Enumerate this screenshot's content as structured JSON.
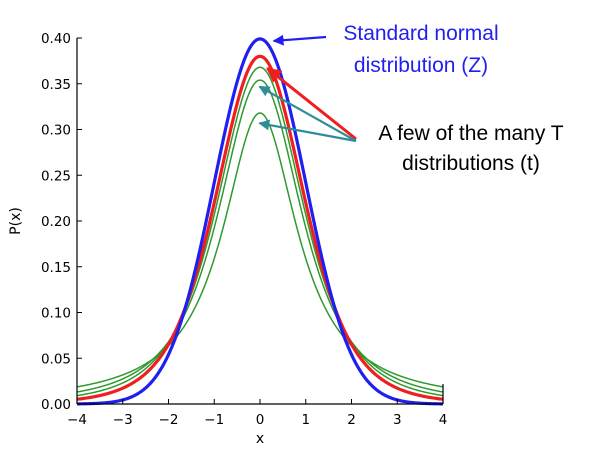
{
  "chart_data": {
    "type": "line",
    "xlabel": "x",
    "ylabel": "P(x)",
    "xlim": [
      -4,
      4
    ],
    "ylim": [
      0,
      0.4
    ],
    "x_ticks": [
      -4,
      -3,
      -2,
      -1,
      0,
      1,
      2,
      3,
      4
    ],
    "x_tick_labels": [
      "−4",
      "−3",
      "−2",
      "−1",
      "0",
      "1",
      "2",
      "3",
      "4"
    ],
    "y_ticks": [
      0,
      0.05,
      0.1,
      0.15,
      0.2,
      0.25,
      0.3,
      0.35,
      0.4
    ],
    "y_tick_labels": [
      "0.00",
      "0.05",
      "0.10",
      "0.15",
      "0.20",
      "0.25",
      "0.30",
      "0.35",
      "0.40"
    ],
    "grid": false,
    "series": [
      {
        "distribution": "normal",
        "peak": 0.399,
        "color": "#1f1fef",
        "line": "thick"
      },
      {
        "distribution": "t",
        "df": 5,
        "peak": 0.38,
        "color": "#ef1f1f",
        "line": "thick"
      },
      {
        "distribution": "t",
        "df": 3,
        "peak": 0.368,
        "color": "#2e9a2e",
        "line": "thin"
      },
      {
        "distribution": "t",
        "df": 2,
        "peak": 0.354,
        "color": "#2e9a2e",
        "line": "thin"
      },
      {
        "distribution": "t",
        "df": 1,
        "peak": 0.318,
        "color": "#2e9a2e",
        "line": "thin"
      }
    ],
    "annotations": [
      {
        "lines": [
          "Standard normal",
          "distribution (Z)"
        ],
        "color": "#1f1fef",
        "arrow_color": "#1f1fef",
        "target": {
          "x": 0.08,
          "y": 0.399
        }
      },
      {
        "lines": [
          "A few of the many T",
          "distributions (t)"
        ],
        "color": "#000000",
        "arrow_color": "#ef1f1f",
        "target": {
          "x": 0.05,
          "y": 0.368
        }
      }
    ],
    "t_arrows": {
      "color": "#2e8d9a",
      "targets": [
        {
          "x": -0.1,
          "y": 0.348
        },
        {
          "x": -0.1,
          "y": 0.308
        }
      ]
    }
  }
}
